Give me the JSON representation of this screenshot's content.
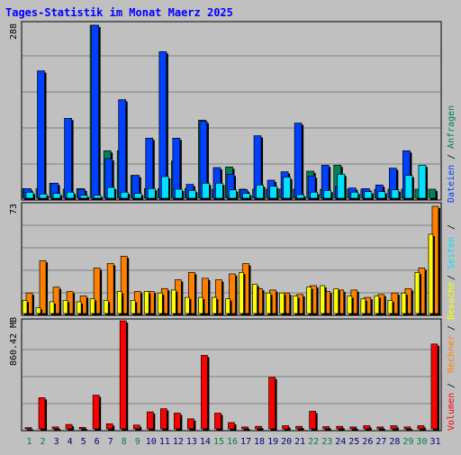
{
  "colors": {
    "background": "#c0c0c0",
    "title": "#0000ff",
    "hits": "#00805c",
    "files": "#0040ff",
    "pages": "#00e0ff",
    "visits": "#ffff00",
    "sites": "#ff8000",
    "kbytes": "#ff0000",
    "day_weekend": "#008040",
    "day_weekday": "#000080"
  },
  "chart_data": [
    {
      "type": "bar",
      "title": "Tages-Statistik im Monat Maerz 2025",
      "categories": [
        "1",
        "2",
        "3",
        "4",
        "5",
        "6",
        "7",
        "8",
        "9",
        "10",
        "11",
        "12",
        "13",
        "14",
        "15",
        "16",
        "17",
        "18",
        "19",
        "20",
        "21",
        "22",
        "23",
        "24",
        "25",
        "26",
        "27",
        "28",
        "29",
        "30",
        "31"
      ],
      "weekend_days": [
        "1",
        "2",
        "8",
        "9",
        "15",
        "16",
        "22",
        "23",
        "29",
        "30"
      ],
      "ymax_label": "288",
      "ylim": [
        0,
        288
      ],
      "legend": {
        "hits": "Anfragen",
        "files": "Dateien",
        "pages": "Seiten"
      },
      "series": [
        {
          "name": "Anfragen",
          "key": "hits",
          "values": [
            16,
            16,
            25,
            15,
            16,
            288,
            79,
            79,
            38,
            16,
            16,
            62,
            16,
            130,
            15,
            52,
            15,
            15,
            15,
            15,
            15,
            45,
            15,
            55,
            15,
            15,
            15,
            15,
            15,
            15,
            15
          ]
        },
        {
          "name": "Dateien",
          "key": "files",
          "values": [
            16,
            212,
            25,
            133,
            15,
            288,
            66,
            164,
            38,
            100,
            244,
            100,
            23,
            128,
            51,
            40,
            14,
            104,
            30,
            44,
            125,
            37,
            55,
            19,
            17,
            16,
            22,
            50,
            79,
            0,
            0
          ]
        },
        {
          "name": "Seiten",
          "key": "pages",
          "values": [
            10,
            7,
            8,
            10,
            5,
            5,
            18,
            10,
            8,
            16,
            36,
            15,
            13,
            25,
            25,
            14,
            8,
            22,
            20,
            35,
            6,
            10,
            13,
            40,
            10,
            11,
            11,
            14,
            38,
            55,
            0
          ]
        }
      ]
    },
    {
      "type": "bar",
      "ymax_label": "73",
      "ylim": [
        0,
        73
      ],
      "legend": {
        "visits": "Besuche",
        "sites": "Rechner"
      },
      "series": [
        {
          "name": "Besuche",
          "key": "visits",
          "values": [
            9,
            4,
            8,
            9,
            8,
            10,
            9,
            15,
            9,
            15,
            14,
            16,
            11,
            11,
            11,
            10,
            28,
            20,
            14,
            14,
            12,
            18,
            19,
            17,
            12,
            10,
            12,
            9,
            14,
            28,
            54
          ]
        },
        {
          "name": "Rechner",
          "key": "sites",
          "values": [
            14,
            36,
            18,
            15,
            12,
            31,
            34,
            39,
            15,
            15,
            17,
            23,
            28,
            24,
            23,
            27,
            34,
            17,
            16,
            14,
            13,
            19,
            15,
            16,
            16,
            11,
            13,
            14,
            17,
            31,
            73
          ]
        }
      ]
    },
    {
      "type": "bar",
      "ymax_label": "860.42 MB",
      "ylim": [
        0,
        860.42
      ],
      "legend": {
        "kbytes": "Volumen"
      },
      "series": [
        {
          "name": "Volumen",
          "key": "kbytes",
          "values": [
            10,
            248,
            15,
            35,
            12,
            268,
            40,
            860,
            30,
            135,
            160,
            125,
            80,
            585,
            125,
            50,
            15,
            20,
            410,
            25,
            20,
            140,
            18,
            20,
            15,
            25,
            15,
            25,
            15,
            25,
            675
          ]
        }
      ]
    }
  ]
}
